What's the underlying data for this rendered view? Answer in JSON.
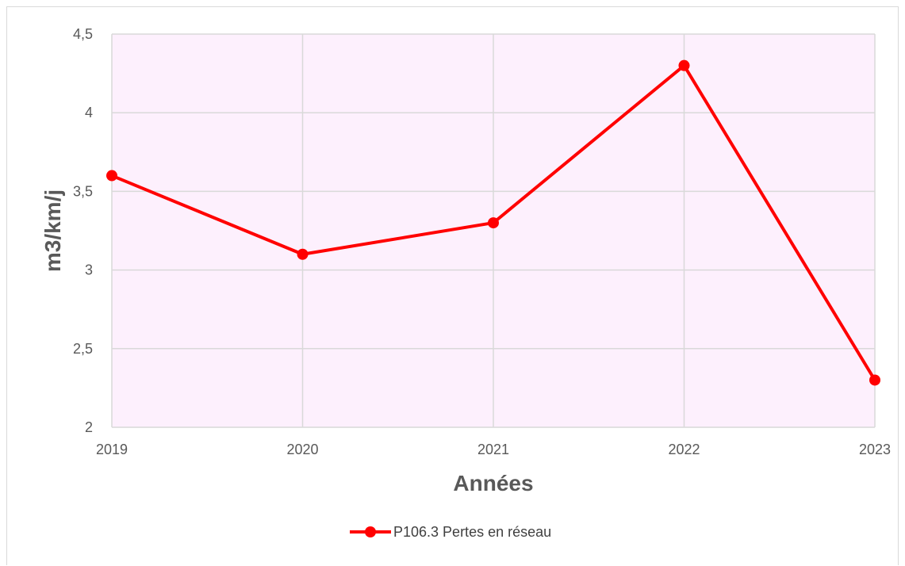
{
  "chart_data": {
    "type": "line",
    "title": "",
    "xlabel": "Années",
    "ylabel": "m3/km/j",
    "categories": [
      "2019",
      "2020",
      "2021",
      "2022",
      "2023"
    ],
    "series": [
      {
        "name": "P106.3 Pertes en réseau",
        "values": [
          3.6,
          3.1,
          3.3,
          4.3,
          2.3
        ],
        "color": "#ff0000"
      }
    ],
    "ylim": [
      2,
      4.5
    ],
    "yticks": [
      "2",
      "2,5",
      "3",
      "3,5",
      "4",
      "4,5"
    ],
    "grid": true,
    "legend_position": "bottom",
    "plot_background": "#fdf0fd"
  }
}
